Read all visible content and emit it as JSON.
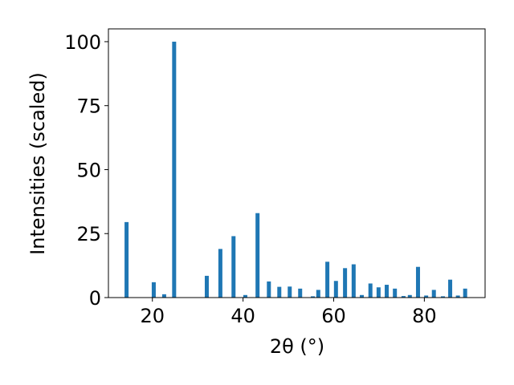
{
  "chart_data": {
    "type": "bar",
    "x_label": "2θ (°)",
    "y_label": "Intensities (scaled)",
    "x": [
      14.3,
      20.3,
      22.6,
      24.8,
      32.0,
      35.0,
      37.9,
      40.5,
      43.2,
      45.7,
      48.0,
      50.3,
      52.6,
      55.4,
      56.6,
      58.6,
      60.5,
      62.5,
      64.4,
      66.2,
      68.1,
      69.9,
      71.7,
      73.5,
      75.4,
      76.8,
      78.6,
      80.4,
      82.1,
      84.1,
      85.7,
      87.4,
      89.0
    ],
    "values": [
      29.5,
      6,
      1.3,
      100,
      8.5,
      19,
      24,
      1,
      33,
      6.3,
      4.2,
      4.3,
      3.5,
      0.5,
      3,
      14,
      6.5,
      11.5,
      13,
      1,
      5.5,
      4,
      5,
      3.5,
      0.6,
      1,
      12,
      0.8,
      3,
      0.5,
      7,
      0.8,
      3.5
    ],
    "color": "#1f77b4",
    "xlim": [
      10.3,
      93.4
    ],
    "ylim": [
      0,
      105
    ],
    "xticks": [
      20,
      40,
      60,
      80
    ],
    "yticks": [
      0,
      25,
      50,
      75,
      100
    ]
  }
}
